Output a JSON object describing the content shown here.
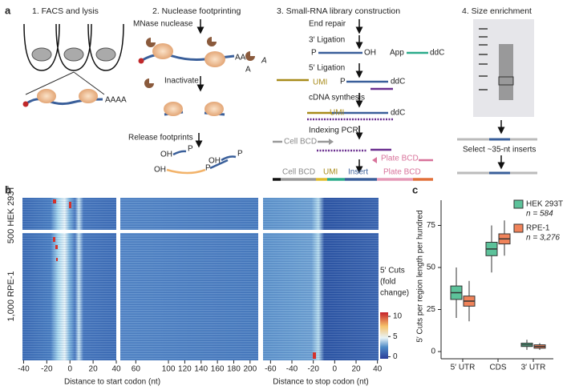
{
  "panel_a": {
    "label": "a",
    "step1": {
      "title": "1. FACS and lysis",
      "poly_a": "AAAA"
    },
    "step2": {
      "title": "2. Nuclease footprinting",
      "nuclease": "MNase nuclease",
      "tails": [
        "AA",
        "A",
        "A"
      ],
      "inactivate": "Inactivate",
      "release": "Release footprints",
      "ends": [
        "OH",
        "P",
        "OH",
        "P",
        "OH",
        "P"
      ]
    },
    "step3": {
      "title": "3. Small-RNA library construction",
      "end_repair": "End repair",
      "ligation3": "3′ Ligation",
      "row1": [
        "P",
        "OH",
        "App",
        "ddC"
      ],
      "ligation5": "5′ Ligation",
      "row2": [
        "UMI",
        "P",
        "ddC"
      ],
      "cdna": "cDNA synthesis",
      "row3": [
        "UMI",
        "ddC"
      ],
      "pcr": "Indexing PCR",
      "cell_bcd": "Cell BCD",
      "plate_bcd": "Plate BCD",
      "final": [
        "Cell BCD",
        "UMI",
        "Insert",
        "Plate BCD"
      ]
    },
    "step4": {
      "title": "4. Size enrichment",
      "select": "Select ~35-nt inserts"
    }
  },
  "panel_b": {
    "label": "b",
    "row_labels": [
      "500 HEK 293T",
      "1,000 RPE-1"
    ],
    "colorbar": {
      "title": [
        "5′ Cuts",
        "(fold",
        "change)"
      ],
      "lim": [
        -0.5,
        11
      ],
      "ticks": [
        0,
        5,
        10
      ]
    },
    "heatmaps": [
      {
        "xlim": [
          -41,
          40
        ],
        "xticks": [
          -40,
          -20,
          0,
          20,
          40
        ]
      },
      {
        "xlim": [
          41,
          210
        ],
        "xticks": [
          60,
          100,
          120,
          140,
          160,
          180,
          200
        ]
      },
      {
        "xlim": [
          -67,
          41
        ],
        "xticks": [
          -60,
          -40,
          -20,
          0,
          20,
          40
        ]
      }
    ],
    "xlabels": [
      "Distance to start codon (nt)",
      "Distance to stop codon (nt)"
    ]
  },
  "chart_data": {
    "type": "box",
    "label": "c",
    "ylabel": "5′ Cuts per region length per hundred",
    "categories": [
      "5′ UTR",
      "CDS",
      "3′ UTR"
    ],
    "ylim": [
      -4,
      90
    ],
    "yticks": [
      0,
      25,
      50,
      75
    ],
    "series": [
      {
        "name": "HEK 293T",
        "n_label": "n = 584",
        "color": "#5cc29a",
        "values": [
          {
            "min": 20,
            "q1": 31,
            "median": 35,
            "q3": 39,
            "max": 50
          },
          {
            "min": 47,
            "q1": 57,
            "median": 61,
            "q3": 65,
            "max": 75
          },
          {
            "min": 1,
            "q1": 3,
            "median": 4,
            "q3": 5,
            "max": 7
          }
        ]
      },
      {
        "name": "RPE-1",
        "n_label": "n = 3,276",
        "color": "#f0835a",
        "values": [
          {
            "min": 18,
            "q1": 27,
            "median": 30,
            "q3": 33,
            "max": 42
          },
          {
            "min": 57,
            "q1": 64,
            "median": 67,
            "q3": 70,
            "max": 78
          },
          {
            "min": 1,
            "q1": 2,
            "median": 3,
            "q3": 4,
            "max": 5
          }
        ]
      }
    ]
  }
}
